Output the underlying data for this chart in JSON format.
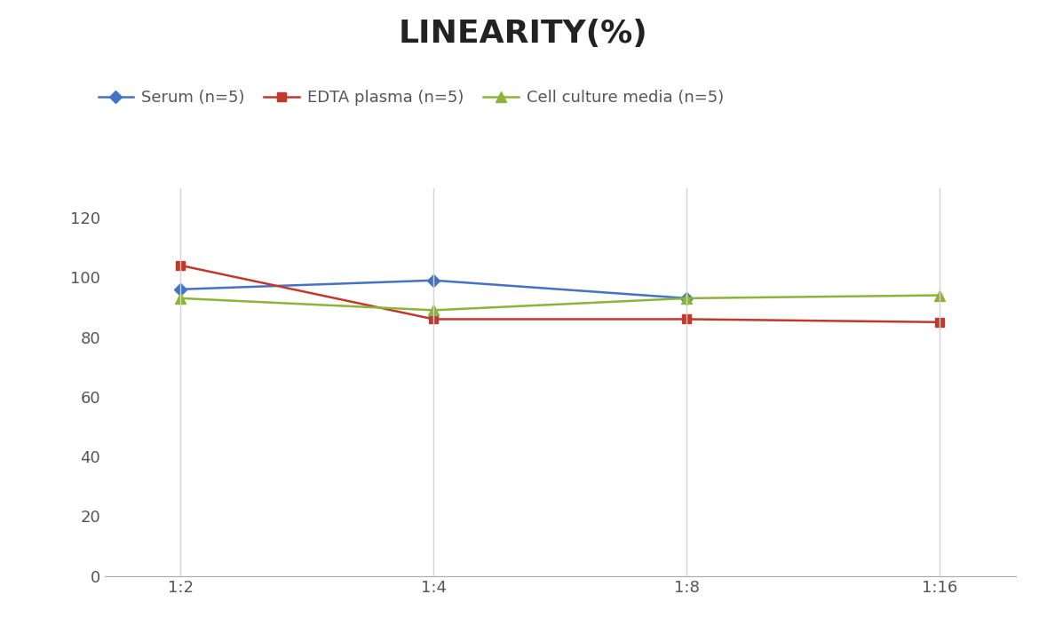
{
  "title": "LINEARITY(%)",
  "x_labels": [
    "1:2",
    "1:4",
    "1:8",
    "1:16"
  ],
  "series": [
    {
      "label": "Serum (n=5)",
      "values": [
        96,
        99,
        93,
        null
      ],
      "color": "#4472C4",
      "marker": "D",
      "markersize": 7,
      "linewidth": 1.8
    },
    {
      "label": "EDTA plasma (n=5)",
      "values": [
        104,
        86,
        86,
        85
      ],
      "color": "#C0392B",
      "marker": "s",
      "markersize": 7,
      "linewidth": 1.8
    },
    {
      "label": "Cell culture media (n=5)",
      "values": [
        93,
        89,
        93,
        94
      ],
      "color": "#8DB33A",
      "marker": "^",
      "markersize": 8,
      "linewidth": 1.8
    }
  ],
  "ylim": [
    0,
    130
  ],
  "yticks": [
    0,
    20,
    40,
    60,
    80,
    100,
    120
  ],
  "background_color": "#ffffff",
  "grid_color": "#d4d4d4",
  "title_fontsize": 26,
  "legend_fontsize": 13,
  "tick_fontsize": 13
}
